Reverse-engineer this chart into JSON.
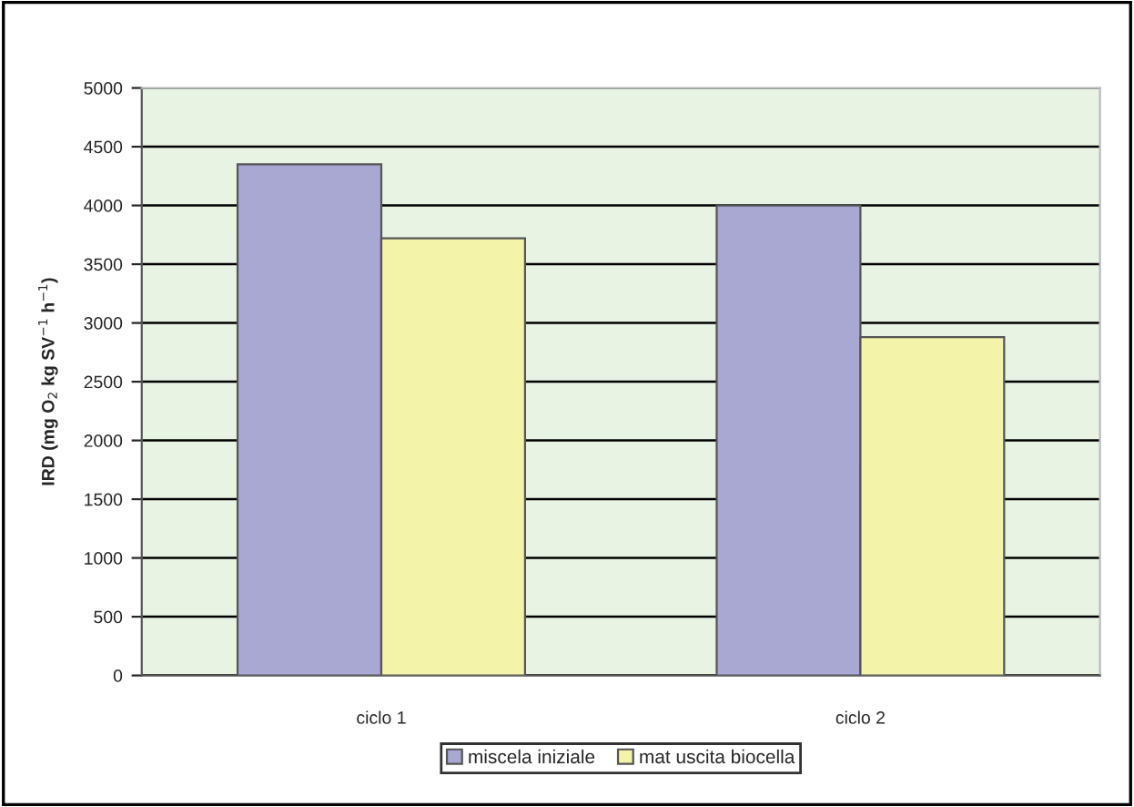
{
  "chart_data": {
    "type": "bar",
    "ylabel": "IRD (mg O$_{2}$ kg SV$^{−1}$ h$^{−1}$)",
    "categories": [
      "ciclo 1",
      "ciclo 2"
    ],
    "series": [
      {
        "name": "miscela iniziale",
        "color": "#a9a8d2",
        "values": [
          4350,
          4000
        ]
      },
      {
        "name": "mat uscita biocella",
        "color": "#f3f3a9",
        "values": [
          3720,
          2880
        ]
      }
    ],
    "ylim": [
      0,
      5000
    ],
    "yticks": [
      0,
      500,
      1000,
      1500,
      2000,
      2500,
      3000,
      3500,
      4000,
      4500,
      5000
    ],
    "grid": "y",
    "legend": "bottom"
  }
}
